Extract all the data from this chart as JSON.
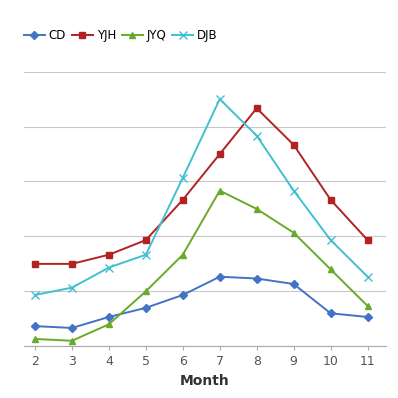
{
  "months": [
    2,
    3,
    4,
    5,
    6,
    7,
    8,
    9,
    10,
    11
  ],
  "CD": [
    1.1,
    1.0,
    1.6,
    2.1,
    2.8,
    3.8,
    3.7,
    3.4,
    1.8,
    1.6
  ],
  "YJH": [
    4.5,
    4.5,
    5.0,
    5.8,
    8.0,
    10.5,
    13.0,
    11.0,
    8.0,
    5.8
  ],
  "JYQ": [
    0.4,
    0.3,
    1.2,
    3.0,
    5.0,
    8.5,
    7.5,
    6.2,
    4.2,
    2.2
  ],
  "DJB": [
    2.8,
    3.2,
    4.3,
    5.0,
    9.2,
    13.5,
    11.5,
    8.5,
    5.8,
    3.8
  ],
  "colors": {
    "CD": "#4472c4",
    "YJH": "#b22222",
    "JYQ": "#6aaa2a",
    "DJB": "#40c0d0"
  },
  "markers": {
    "CD": "D",
    "YJH": "s",
    "JYQ": "^",
    "DJB": "x"
  },
  "marker_sizes": {
    "CD": 4,
    "YJH": 5,
    "JYQ": 5,
    "DJB": 6
  },
  "xlabel": "Month",
  "ylim": [
    0,
    15
  ],
  "xlim": [
    1.7,
    11.5
  ],
  "grid_color": "#c8c8c8",
  "bg_color": "#ffffff",
  "yticks": [
    0,
    3,
    6,
    9,
    12,
    15
  ]
}
